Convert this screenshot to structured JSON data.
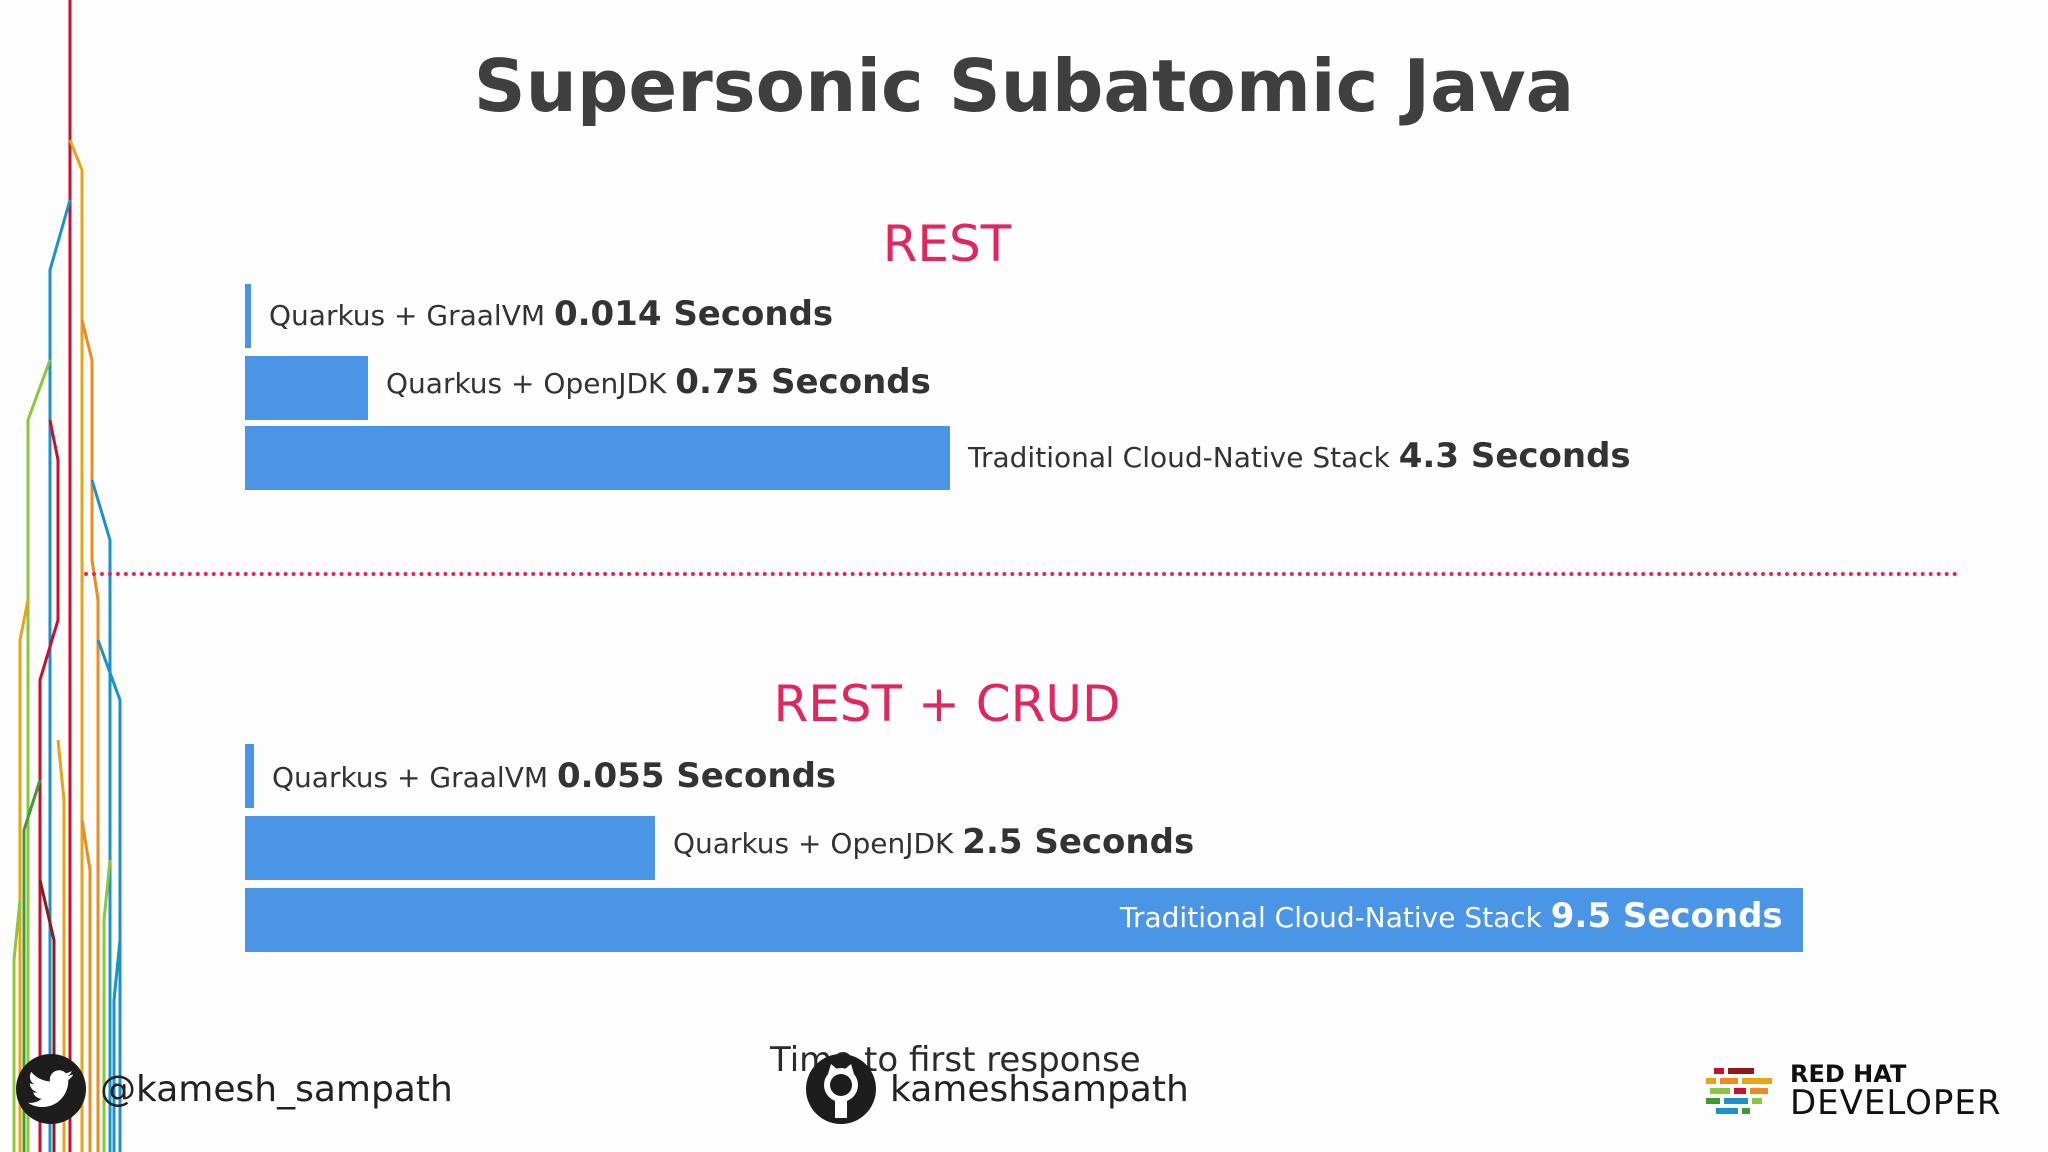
{
  "slide_title": "Supersonic Subatomic Java",
  "footnote": "Time to first response",
  "social": {
    "twitter_handle": "@kamesh_sampath",
    "github_user": "kameshsampath"
  },
  "brand": {
    "line1": "RED HAT",
    "line2": "DEVELOPER"
  },
  "colors": {
    "bar": "#4a95e6",
    "section_title": "#e0255f",
    "divider": "#e0255f",
    "title": "#3f3f3f"
  },
  "chart_data": [
    {
      "type": "bar",
      "orientation": "horizontal",
      "title": "REST",
      "unit": "Seconds",
      "grid": false,
      "series": [
        {
          "label": "Quarkus + GraalVM",
          "value": 0.014,
          "value_text": "0.014 Seconds"
        },
        {
          "label": "Quarkus + OpenJDK",
          "value": 0.75,
          "value_text": "0.75 Seconds"
        },
        {
          "label": "Traditional Cloud-Native Stack",
          "value": 4.3,
          "value_text": "4.3 Seconds"
        }
      ]
    },
    {
      "type": "bar",
      "orientation": "horizontal",
      "title": "REST + CRUD",
      "unit": "Seconds",
      "grid": false,
      "series": [
        {
          "label": "Quarkus + GraalVM",
          "value": 0.055,
          "value_text": "0.055 Seconds"
        },
        {
          "label": "Quarkus + OpenJDK",
          "value": 2.5,
          "value_text": "2.5 Seconds"
        },
        {
          "label": "Traditional Cloud-Native Stack",
          "value": 9.5,
          "value_text": "9.5 Seconds"
        }
      ]
    }
  ]
}
